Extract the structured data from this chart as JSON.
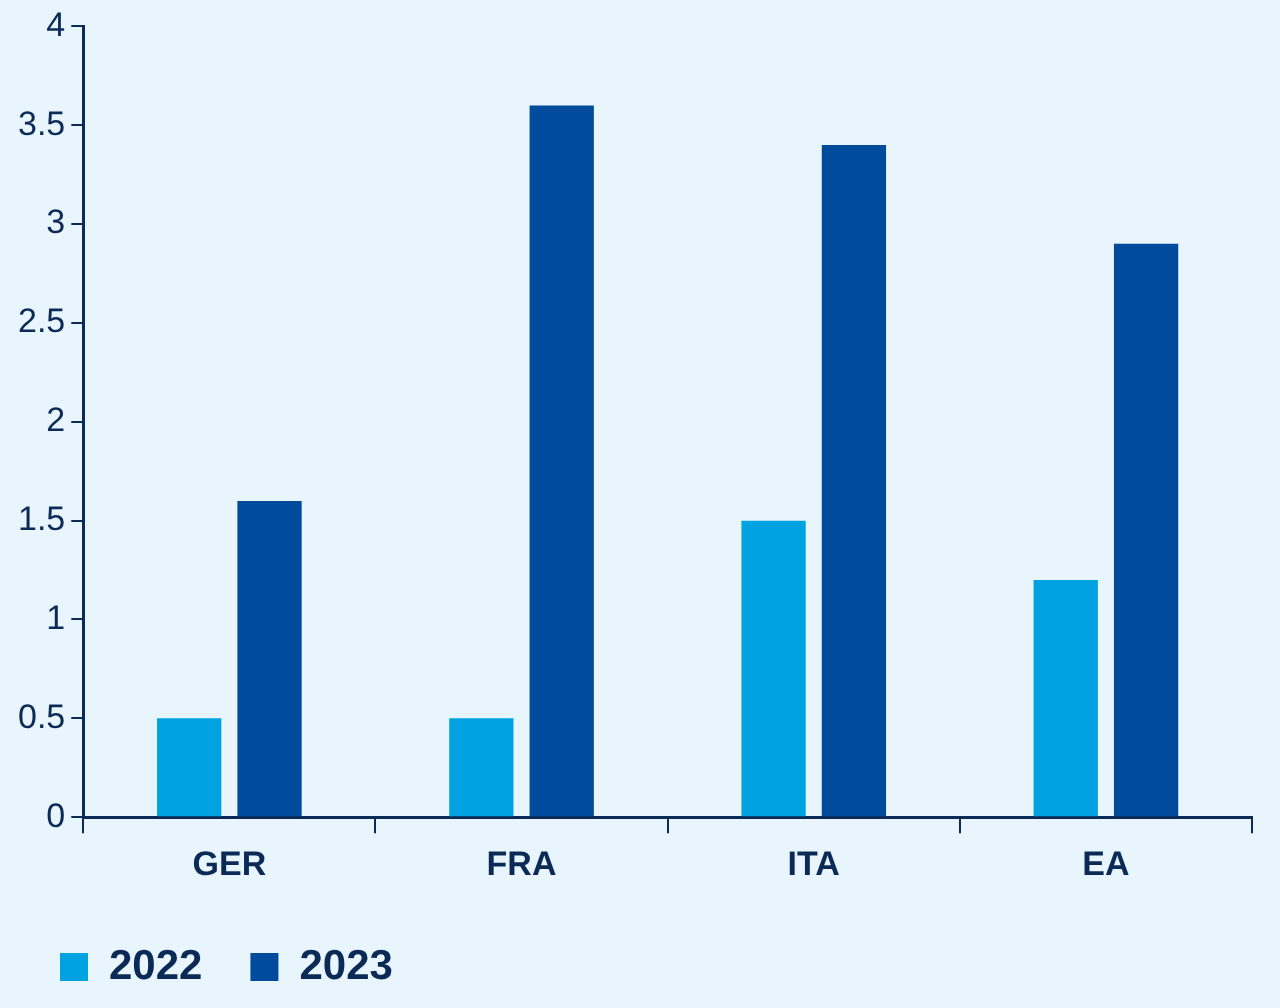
{
  "chart_data": {
    "type": "bar",
    "categories": [
      "GER",
      "FRA",
      "ITA",
      "EA"
    ],
    "series": [
      {
        "name": "2022",
        "color": "#00a2e1",
        "values": [
          0.5,
          0.5,
          1.5,
          1.2
        ]
      },
      {
        "name": "2023",
        "color": "#004b9b",
        "values": [
          1.6,
          3.6,
          3.4,
          2.9
        ]
      }
    ],
    "ylim": [
      0,
      4
    ],
    "yticks": [
      0,
      0.5,
      1,
      1.5,
      2,
      2.5,
      3,
      3.5,
      4
    ],
    "legend": "bottom left"
  }
}
